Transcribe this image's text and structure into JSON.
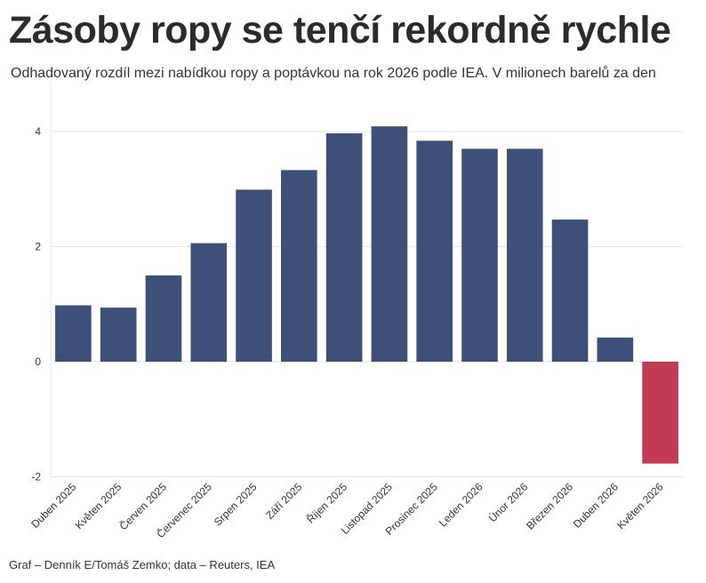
{
  "header": {
    "title": "Zásoby ropy se tenčí rekordně rychle",
    "subtitle": "Odhadovaný rozdíl mezi nabídkou ropy a poptávkou na rok 2026 podle IEA. V milionech barelů za den"
  },
  "footer": {
    "source": "Graf – Denník E/Tomáš Zemko; data – Reuters, IEA"
  },
  "chart_data": {
    "type": "bar",
    "categories": [
      "Duben 2025",
      "Květen 2025",
      "Červen 2025",
      "Červenec 2025",
      "Srpen 2025",
      "Září 2025",
      "Říjen 2025",
      "Listopad 2025",
      "Prosinec 2025",
      "Leden 2026",
      "Únor 2026",
      "Březen 2026",
      "Duben 2026",
      "Květen 2026"
    ],
    "values": [
      0.98,
      0.94,
      1.5,
      2.06,
      2.99,
      3.33,
      3.97,
      4.09,
      3.84,
      3.7,
      3.7,
      2.47,
      0.42,
      -1.77
    ],
    "title": "Zásoby ropy se tenčí rekordně rychle",
    "ylim": [
      -2,
      4.4
    ],
    "yticks": [
      -2,
      0,
      2,
      4
    ],
    "grid": true,
    "colors": {
      "positive": "#3e5078",
      "negative": "#c23b55"
    }
  }
}
